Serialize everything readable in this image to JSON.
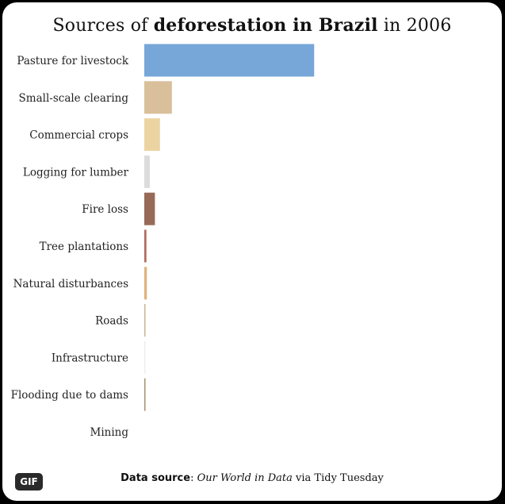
{
  "title": {
    "prefix": "Sources of ",
    "bold": "deforestation in Brazil",
    "suffix": " in 2006"
  },
  "source": {
    "label": "Data source",
    "sep": ": ",
    "name": "Our World in Data",
    "suffix": " via Tidy Tuesday"
  },
  "badge": {
    "label": "GIF"
  },
  "chart_data": {
    "type": "bar",
    "orientation": "horizontal",
    "title": "Sources of deforestation in Brazil in 2006",
    "categories": [
      "Pasture for livestock",
      "Small-scale clearing",
      "Commercial crops",
      "Logging for lumber",
      "Fire loss",
      "Tree plantations",
      "Natural disturbances",
      "Roads",
      "Infrastructure",
      "Flooding due to dams",
      "Mining"
    ],
    "values": [
      2000000,
      325000,
      185000,
      65000,
      125000,
      25000,
      30000,
      10000,
      4000,
      10000,
      0
    ],
    "colors": [
      "#77a6d9",
      "#d9c09a",
      "#ecd4a2",
      "#dcdcdc",
      "#976a58",
      "#b06b5b",
      "#dfb37a",
      "#c9b58c",
      "#eeeeee",
      "#a6926b",
      "#b38a6a"
    ],
    "xlim": [
      0,
      2800000
    ],
    "axes_shown": false,
    "grid": false
  }
}
